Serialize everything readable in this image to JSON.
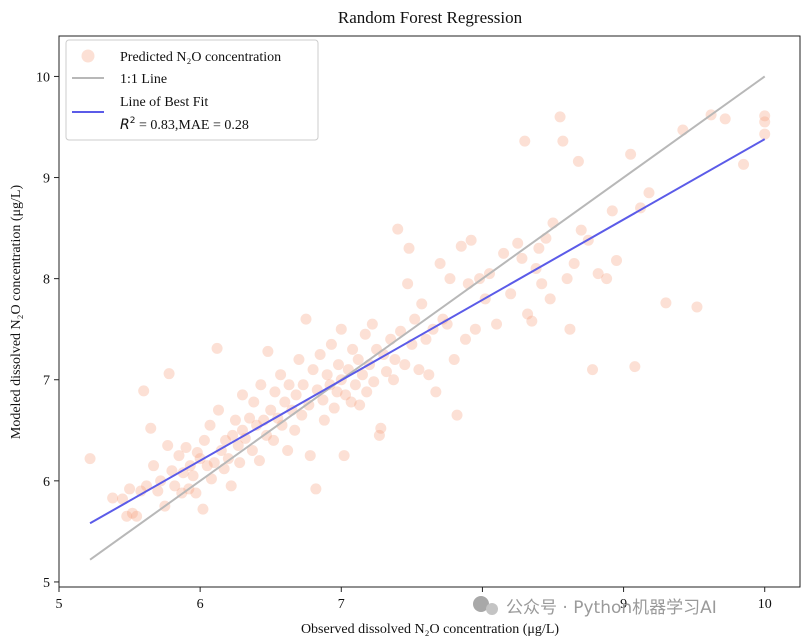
{
  "chart_data": {
    "type": "scatter",
    "title": "Random Forest Regression",
    "xlabel": "Observed dissolved N₂O concentration (μg/L)",
    "ylabel": "Modeled dissolved N₂O concentration (μg/L)",
    "xlim": [
      5,
      10.25
    ],
    "ylim": [
      4.95,
      10.4
    ],
    "xticks": [
      5,
      6,
      7,
      8,
      9,
      10
    ],
    "yticks": [
      5,
      6,
      7,
      8,
      9,
      10
    ],
    "grid": false,
    "legend_position": "top-left",
    "colors": {
      "points": "#f7a07d",
      "identity_line": "#b8b8b8",
      "fit_line": "#5b5be8"
    },
    "series": [
      {
        "name": "Predicted N₂O concentration",
        "kind": "points",
        "points": [
          [
            5.22,
            6.22
          ],
          [
            5.38,
            5.83
          ],
          [
            5.45,
            5.82
          ],
          [
            5.48,
            5.65
          ],
          [
            5.5,
            5.92
          ],
          [
            5.52,
            5.68
          ],
          [
            5.55,
            5.65
          ],
          [
            5.58,
            5.9
          ],
          [
            5.6,
            6.89
          ],
          [
            5.62,
            5.95
          ],
          [
            5.65,
            6.52
          ],
          [
            5.67,
            6.15
          ],
          [
            5.7,
            5.9
          ],
          [
            5.72,
            6.0
          ],
          [
            5.75,
            5.75
          ],
          [
            5.77,
            6.35
          ],
          [
            5.78,
            7.06
          ],
          [
            5.8,
            6.1
          ],
          [
            5.82,
            5.95
          ],
          [
            5.85,
            6.25
          ],
          [
            5.87,
            5.88
          ],
          [
            5.88,
            6.08
          ],
          [
            5.9,
            6.33
          ],
          [
            5.92,
            5.92
          ],
          [
            5.93,
            6.15
          ],
          [
            5.95,
            6.05
          ],
          [
            5.97,
            5.88
          ],
          [
            5.98,
            6.28
          ],
          [
            6.0,
            6.22
          ],
          [
            6.02,
            5.72
          ],
          [
            6.03,
            6.4
          ],
          [
            6.05,
            6.15
          ],
          [
            6.07,
            6.55
          ],
          [
            6.08,
            6.02
          ],
          [
            6.1,
            6.18
          ],
          [
            6.12,
            7.31
          ],
          [
            6.13,
            6.7
          ],
          [
            6.15,
            6.3
          ],
          [
            6.17,
            6.12
          ],
          [
            6.18,
            6.4
          ],
          [
            6.2,
            6.22
          ],
          [
            6.22,
            5.95
          ],
          [
            6.23,
            6.45
          ],
          [
            6.25,
            6.6
          ],
          [
            6.27,
            6.35
          ],
          [
            6.28,
            6.18
          ],
          [
            6.3,
            6.5
          ],
          [
            6.3,
            6.85
          ],
          [
            6.32,
            6.42
          ],
          [
            6.35,
            6.62
          ],
          [
            6.37,
            6.3
          ],
          [
            6.38,
            6.78
          ],
          [
            6.4,
            6.55
          ],
          [
            6.42,
            6.2
          ],
          [
            6.43,
            6.95
          ],
          [
            6.45,
            6.6
          ],
          [
            6.47,
            6.45
          ],
          [
            6.48,
            7.28
          ],
          [
            6.5,
            6.7
          ],
          [
            6.52,
            6.4
          ],
          [
            6.53,
            6.88
          ],
          [
            6.55,
            6.62
          ],
          [
            6.57,
            7.05
          ],
          [
            6.58,
            6.55
          ],
          [
            6.6,
            6.78
          ],
          [
            6.62,
            6.3
          ],
          [
            6.63,
            6.95
          ],
          [
            6.65,
            6.7
          ],
          [
            6.67,
            6.5
          ],
          [
            6.68,
            6.85
          ],
          [
            6.7,
            7.2
          ],
          [
            6.72,
            6.65
          ],
          [
            6.73,
            6.95
          ],
          [
            6.75,
            7.6
          ],
          [
            6.77,
            6.75
          ],
          [
            6.78,
            6.25
          ],
          [
            6.8,
            7.1
          ],
          [
            6.82,
            5.92
          ],
          [
            6.83,
            6.9
          ],
          [
            6.85,
            7.25
          ],
          [
            6.87,
            6.8
          ],
          [
            6.88,
            6.6
          ],
          [
            6.9,
            7.05
          ],
          [
            6.92,
            6.95
          ],
          [
            6.93,
            7.35
          ],
          [
            6.95,
            6.72
          ],
          [
            6.97,
            6.88
          ],
          [
            6.98,
            7.15
          ],
          [
            7.0,
            7.0
          ],
          [
            7.0,
            7.5
          ],
          [
            7.02,
            6.25
          ],
          [
            7.03,
            6.85
          ],
          [
            7.05,
            7.1
          ],
          [
            7.07,
            6.78
          ],
          [
            7.08,
            7.3
          ],
          [
            7.1,
            6.95
          ],
          [
            7.12,
            7.2
          ],
          [
            7.13,
            6.75
          ],
          [
            7.15,
            7.05
          ],
          [
            7.17,
            7.45
          ],
          [
            7.18,
            6.88
          ],
          [
            7.2,
            7.15
          ],
          [
            7.22,
            7.55
          ],
          [
            7.23,
            6.98
          ],
          [
            7.25,
            7.3
          ],
          [
            7.27,
            6.45
          ],
          [
            7.28,
            6.52
          ],
          [
            7.3,
            7.25
          ],
          [
            7.32,
            7.08
          ],
          [
            7.35,
            7.4
          ],
          [
            7.37,
            7.0
          ],
          [
            7.38,
            7.2
          ],
          [
            7.4,
            8.49
          ],
          [
            7.42,
            7.48
          ],
          [
            7.45,
            7.15
          ],
          [
            7.47,
            7.95
          ],
          [
            7.48,
            8.3
          ],
          [
            7.5,
            7.35
          ],
          [
            7.52,
            7.6
          ],
          [
            7.55,
            7.1
          ],
          [
            7.57,
            7.75
          ],
          [
            7.6,
            7.4
          ],
          [
            7.62,
            7.05
          ],
          [
            7.65,
            7.5
          ],
          [
            7.67,
            6.88
          ],
          [
            7.7,
            8.15
          ],
          [
            7.72,
            7.6
          ],
          [
            7.75,
            7.55
          ],
          [
            7.77,
            8.0
          ],
          [
            7.8,
            7.2
          ],
          [
            7.82,
            6.65
          ],
          [
            7.85,
            8.32
          ],
          [
            7.88,
            7.4
          ],
          [
            7.9,
            7.95
          ],
          [
            7.92,
            8.38
          ],
          [
            7.95,
            7.5
          ],
          [
            7.98,
            8.0
          ],
          [
            8.02,
            7.8
          ],
          [
            8.05,
            8.05
          ],
          [
            8.1,
            7.55
          ],
          [
            8.15,
            8.25
          ],
          [
            8.2,
            7.85
          ],
          [
            8.25,
            8.35
          ],
          [
            8.28,
            8.2
          ],
          [
            8.3,
            9.36
          ],
          [
            8.32,
            7.65
          ],
          [
            8.35,
            7.58
          ],
          [
            8.38,
            8.1
          ],
          [
            8.4,
            8.3
          ],
          [
            8.42,
            7.95
          ],
          [
            8.45,
            8.4
          ],
          [
            8.48,
            7.8
          ],
          [
            8.5,
            8.55
          ],
          [
            8.55,
            9.6
          ],
          [
            8.57,
            9.36
          ],
          [
            8.6,
            8.0
          ],
          [
            8.62,
            7.5
          ],
          [
            8.65,
            8.15
          ],
          [
            8.68,
            9.16
          ],
          [
            8.7,
            8.48
          ],
          [
            8.75,
            8.38
          ],
          [
            8.78,
            7.1
          ],
          [
            8.82,
            8.05
          ],
          [
            8.88,
            8.0
          ],
          [
            8.92,
            8.67
          ],
          [
            8.95,
            8.18
          ],
          [
            9.05,
            9.23
          ],
          [
            9.08,
            7.13
          ],
          [
            9.12,
            8.7
          ],
          [
            9.18,
            8.85
          ],
          [
            9.3,
            7.76
          ],
          [
            9.42,
            9.47
          ],
          [
            9.52,
            7.72
          ],
          [
            9.62,
            9.62
          ],
          [
            9.72,
            9.58
          ],
          [
            9.85,
            9.13
          ],
          [
            10.0,
            9.61
          ],
          [
            10.0,
            9.55
          ],
          [
            10.0,
            9.43
          ]
        ]
      },
      {
        "name": "1:1 Line",
        "kind": "line",
        "x": [
          5.22,
          10.0
        ],
        "y": [
          5.22,
          10.0
        ]
      },
      {
        "name": "Line of Best Fit",
        "kind": "line",
        "x": [
          5.22,
          10.0
        ],
        "y": [
          5.58,
          9.38
        ]
      }
    ],
    "legend": {
      "entries": [
        "Predicted N₂O concentration",
        "1:1 Line",
        "Line of Best Fit"
      ],
      "stats_r2_label": "R",
      "stats_text": " = 0.83,MAE = 0.28"
    }
  },
  "watermark": {
    "text": "公众号 · Python机器学习AI"
  }
}
